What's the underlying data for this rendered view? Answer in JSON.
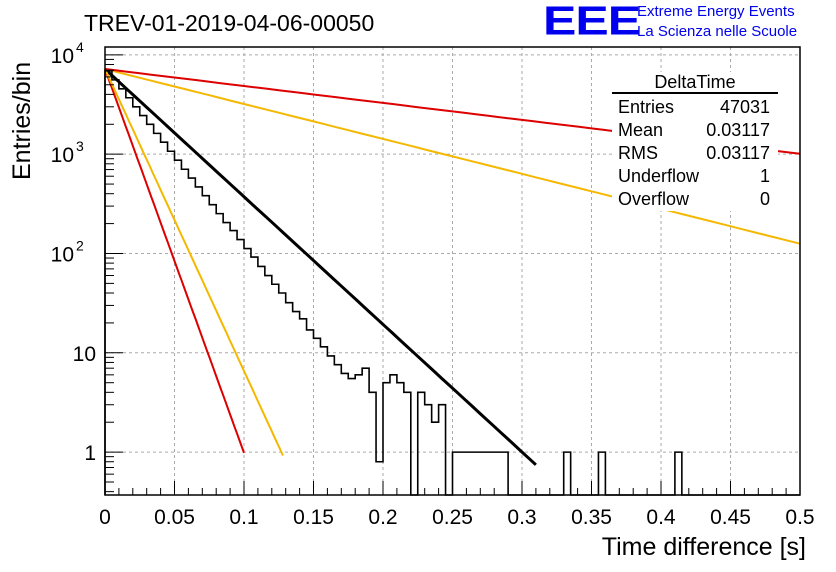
{
  "header": {
    "run_title": "TREV-01-2019-04-06-00050",
    "logo_text": "EEE",
    "org_line1": "Extreme Energy Events",
    "org_line2": "La Scienza nelle Scuole",
    "logo_color": "#0000ee"
  },
  "stats_box": {
    "title": "DeltaTime",
    "rows": [
      {
        "label": "Entries",
        "value": "47031"
      },
      {
        "label": "Mean",
        "value": "0.03117"
      },
      {
        "label": "RMS",
        "value": "0.03117"
      },
      {
        "label": "Underflow",
        "value": "1"
      },
      {
        "label": "Overflow",
        "value": "0"
      }
    ]
  },
  "chart_data": {
    "type": "line",
    "xlabel": "Time difference [s]",
    "ylabel": "Entries/bin",
    "xlim": [
      0,
      0.5
    ],
    "ylim_log": [
      0.37,
      12000
    ],
    "log_y": true,
    "grid": true,
    "x_ticks": [
      "0",
      "0.05",
      "0.1",
      "0.15",
      "0.2",
      "0.25",
      "0.3",
      "0.35",
      "0.4",
      "0.45",
      "0.5"
    ],
    "y_ticks": [
      {
        "value": 1,
        "label": "1"
      },
      {
        "value": 10,
        "label": "10"
      },
      {
        "value": 100,
        "label": "10",
        "exp": "2"
      },
      {
        "value": 1000,
        "label": "10",
        "exp": "3"
      },
      {
        "value": 10000,
        "label": "10",
        "exp": "4"
      }
    ],
    "histogram": {
      "name": "DeltaTime",
      "bin_width": 0.005,
      "color": "#000000",
      "counts": [
        6900,
        5600,
        4550,
        3700,
        3000,
        2450,
        2000,
        1620,
        1320,
        1070,
        870,
        705,
        575,
        468,
        382,
        310,
        252,
        205,
        170,
        138,
        112,
        92,
        74,
        60,
        49,
        40,
        32,
        26,
        22,
        17,
        14,
        11.5,
        9.3,
        7.6,
        6.2,
        5.5,
        6,
        7,
        4,
        0.8,
        5,
        6,
        5,
        4,
        0,
        4,
        3,
        2,
        3,
        0,
        1,
        1,
        1,
        1,
        1,
        1,
        1,
        1,
        0,
        0,
        0,
        0,
        0,
        0,
        0,
        0,
        1,
        0,
        0,
        0,
        0,
        1,
        0,
        0,
        0,
        0,
        0,
        0,
        0,
        0,
        0,
        0,
        1,
        0,
        0,
        0,
        0,
        0,
        0,
        0,
        0,
        0,
        0,
        0,
        0,
        0,
        0,
        0,
        0,
        0
      ]
    },
    "fits": [
      {
        "color": "#000000",
        "y0": 7200,
        "slope": -29.6,
        "x_end": 0.31
      },
      {
        "color": "#dd0000",
        "y0": 7200,
        "slope": -89.0,
        "x_end": 0.1
      },
      {
        "color": "#f5b800",
        "y0": 7200,
        "slope": -70.0,
        "x_end": 0.128
      },
      {
        "color": "#f5b800",
        "y0": 7200,
        "slope": -8.1,
        "x_end": 0.5
      },
      {
        "color": "#dd0000",
        "y0": 7200,
        "slope": -3.93,
        "x_end": 0.5
      }
    ]
  }
}
